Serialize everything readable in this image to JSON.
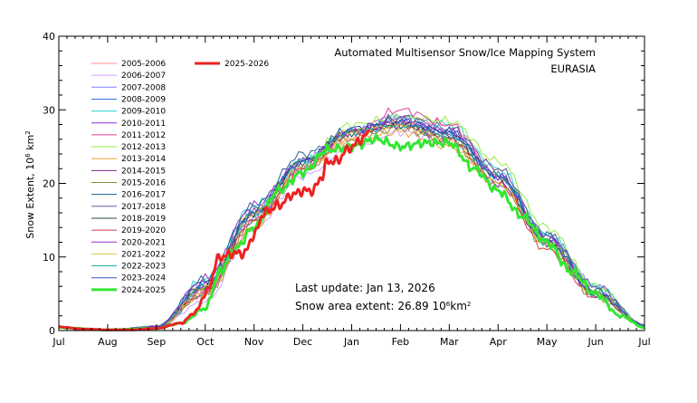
{
  "chart_data": {
    "type": "line",
    "title": "Automated  Multisensor Snow/Ice Mapping System",
    "subtitle": "EURASIA",
    "ylabel": "Snow Extent, 10",
    "ylabel_exp": "6",
    "ylabel_unit": " km",
    "ylabel_unit_exp": "2",
    "ylim": [
      0,
      40
    ],
    "y_ticks": [
      "0",
      "10",
      "20",
      "30",
      "40"
    ],
    "x_ticks": [
      "Jul",
      "Aug",
      "Sep",
      "Oct",
      "Nov",
      "Dec",
      "Jan",
      "Feb",
      "Mar",
      "Apr",
      "May",
      "Jun",
      "Jul"
    ],
    "x_tick_months": [
      0,
      1,
      2,
      3,
      4,
      5,
      6,
      7,
      8,
      9,
      10,
      11,
      12
    ],
    "annotation_update": "Last update: Jan 13, 2026",
    "annotation_extent_label": "Snow area extent:",
    "annotation_extent_value": "26.89",
    "annotation_extent_unit": "10",
    "annotation_extent_exp": "6",
    "annotation_extent_unit2": "km",
    "annotation_extent_exp2": "2",
    "legend_placement": "top-left",
    "series": [
      {
        "name": "2005-2006",
        "color": "#ff8c8c",
        "values": [
          [
            0,
            0.5
          ],
          [
            1,
            0.1
          ],
          [
            2,
            0.5
          ],
          [
            3,
            5
          ],
          [
            4,
            15
          ],
          [
            5,
            22
          ],
          [
            6,
            26
          ],
          [
            7,
            29
          ],
          [
            8,
            28
          ],
          [
            9,
            22
          ],
          [
            10,
            13
          ],
          [
            11,
            6
          ],
          [
            12,
            0.8
          ]
        ]
      },
      {
        "name": "2006-2007",
        "color": "#c9a3ff",
        "values": [
          [
            0,
            0.4
          ],
          [
            1,
            0.1
          ],
          [
            2,
            0.4
          ],
          [
            3,
            4
          ],
          [
            4,
            14
          ],
          [
            5,
            21
          ],
          [
            6,
            25
          ],
          [
            7,
            27
          ],
          [
            8,
            25.5
          ],
          [
            9,
            20
          ],
          [
            10,
            12
          ],
          [
            11,
            5
          ],
          [
            12,
            0.6
          ]
        ]
      },
      {
        "name": "2007-2008",
        "color": "#7d7dff",
        "values": [
          [
            0,
            0.4
          ],
          [
            1,
            0.1
          ],
          [
            2,
            0.5
          ],
          [
            3,
            6
          ],
          [
            4,
            16
          ],
          [
            5,
            23
          ],
          [
            6,
            27
          ],
          [
            7,
            29
          ],
          [
            8,
            27
          ],
          [
            9,
            21
          ],
          [
            10,
            13
          ],
          [
            11,
            6
          ],
          [
            12,
            0.7
          ]
        ]
      },
      {
        "name": "2008-2009",
        "color": "#3b6fe0",
        "values": [
          [
            0,
            0.4
          ],
          [
            1,
            0.1
          ],
          [
            2,
            0.4
          ],
          [
            3,
            5
          ],
          [
            4,
            15
          ],
          [
            5,
            22
          ],
          [
            6,
            27
          ],
          [
            7,
            28
          ],
          [
            8,
            26.5
          ],
          [
            9,
            21
          ],
          [
            10,
            12.5
          ],
          [
            11,
            5
          ],
          [
            12,
            0.6
          ]
        ]
      },
      {
        "name": "2009-2010",
        "color": "#2fd0d0",
        "values": [
          [
            0,
            0.4
          ],
          [
            1,
            0.1
          ],
          [
            2,
            0.6
          ],
          [
            3,
            7
          ],
          [
            4,
            17
          ],
          [
            5,
            23
          ],
          [
            6,
            27
          ],
          [
            7,
            29
          ],
          [
            8,
            28
          ],
          [
            9,
            22
          ],
          [
            10,
            13
          ],
          [
            11,
            6
          ],
          [
            12,
            0.8
          ]
        ]
      },
      {
        "name": "2010-2011",
        "color": "#8a2be2",
        "values": [
          [
            0,
            0.4
          ],
          [
            1,
            0.1
          ],
          [
            2,
            0.5
          ],
          [
            3,
            6
          ],
          [
            4,
            16
          ],
          [
            5,
            23
          ],
          [
            6,
            27
          ],
          [
            7,
            28.5
          ],
          [
            8,
            27
          ],
          [
            9,
            21
          ],
          [
            10,
            12
          ],
          [
            11,
            5
          ],
          [
            12,
            0.7
          ]
        ]
      },
      {
        "name": "2011-2012",
        "color": "#e0409a",
        "values": [
          [
            0,
            0.4
          ],
          [
            1,
            0.1
          ],
          [
            2,
            0.5
          ],
          [
            3,
            5
          ],
          [
            4,
            15
          ],
          [
            5,
            22
          ],
          [
            6,
            27
          ],
          [
            7,
            30
          ],
          [
            8,
            28
          ],
          [
            9,
            21
          ],
          [
            10,
            12
          ],
          [
            11,
            5
          ],
          [
            12,
            0.6
          ]
        ]
      },
      {
        "name": "2012-2013",
        "color": "#90ee40",
        "values": [
          [
            0,
            0.4
          ],
          [
            1,
            0.1
          ],
          [
            2,
            0.5
          ],
          [
            3,
            6
          ],
          [
            4,
            16
          ],
          [
            5,
            23
          ],
          [
            6,
            28
          ],
          [
            7,
            29
          ],
          [
            8,
            28.5
          ],
          [
            9,
            23
          ],
          [
            10,
            14
          ],
          [
            11,
            6
          ],
          [
            12,
            0.8
          ]
        ]
      },
      {
        "name": "2013-2014",
        "color": "#f0a030",
        "values": [
          [
            0,
            0.4
          ],
          [
            1,
            0.1
          ],
          [
            2,
            0.4
          ],
          [
            3,
            5
          ],
          [
            4,
            14
          ],
          [
            5,
            22
          ],
          [
            6,
            26
          ],
          [
            7,
            27
          ],
          [
            8,
            25
          ],
          [
            9,
            20
          ],
          [
            10,
            12
          ],
          [
            11,
            5
          ],
          [
            12,
            0.6
          ]
        ]
      },
      {
        "name": "2014-2015",
        "color": "#7a2a8a",
        "values": [
          [
            0,
            0.4
          ],
          [
            1,
            0.1
          ],
          [
            2,
            0.5
          ],
          [
            3,
            6
          ],
          [
            4,
            16
          ],
          [
            5,
            23
          ],
          [
            6,
            27
          ],
          [
            7,
            28
          ],
          [
            8,
            26
          ],
          [
            9,
            20
          ],
          [
            10,
            12
          ],
          [
            11,
            5
          ],
          [
            12,
            0.6
          ]
        ]
      },
      {
        "name": "2015-2016",
        "color": "#8b8b3a",
        "values": [
          [
            0,
            0.4
          ],
          [
            1,
            0.1
          ],
          [
            2,
            0.4
          ],
          [
            3,
            5
          ],
          [
            4,
            15
          ],
          [
            5,
            22
          ],
          [
            6,
            26
          ],
          [
            7,
            27.5
          ],
          [
            8,
            25.5
          ],
          [
            9,
            20
          ],
          [
            10,
            11.5
          ],
          [
            11,
            4.5
          ],
          [
            12,
            0.6
          ]
        ]
      },
      {
        "name": "2016-2017",
        "color": "#1f5f8f",
        "values": [
          [
            0,
            0.4
          ],
          [
            1,
            0.1
          ],
          [
            2,
            0.6
          ],
          [
            3,
            7
          ],
          [
            4,
            17
          ],
          [
            5,
            24
          ],
          [
            6,
            27
          ],
          [
            7,
            28
          ],
          [
            8,
            27
          ],
          [
            9,
            21
          ],
          [
            10,
            13
          ],
          [
            11,
            5.5
          ],
          [
            12,
            0.7
          ]
        ]
      },
      {
        "name": "2017-2018",
        "color": "#6060a0",
        "values": [
          [
            0,
            0.4
          ],
          [
            1,
            0.1
          ],
          [
            2,
            0.5
          ],
          [
            3,
            6
          ],
          [
            4,
            16
          ],
          [
            5,
            23
          ],
          [
            6,
            27
          ],
          [
            7,
            29
          ],
          [
            8,
            27.5
          ],
          [
            9,
            22
          ],
          [
            10,
            13
          ],
          [
            11,
            6
          ],
          [
            12,
            0.8
          ]
        ]
      },
      {
        "name": "2018-2019",
        "color": "#1f4f2f",
        "values": [
          [
            0,
            0.4
          ],
          [
            1,
            0.1
          ],
          [
            2,
            0.5
          ],
          [
            3,
            6
          ],
          [
            4,
            16
          ],
          [
            5,
            23
          ],
          [
            6,
            27
          ],
          [
            7,
            28
          ],
          [
            8,
            26.5
          ],
          [
            9,
            21
          ],
          [
            10,
            12
          ],
          [
            11,
            5
          ],
          [
            12,
            0.7
          ]
        ]
      },
      {
        "name": "2019-2020",
        "color": "#d04040",
        "values": [
          [
            0,
            0.4
          ],
          [
            1,
            0.1
          ],
          [
            2,
            0.5
          ],
          [
            3,
            5.5
          ],
          [
            4,
            15
          ],
          [
            5,
            22
          ],
          [
            6,
            27
          ],
          [
            7,
            28
          ],
          [
            8,
            26
          ],
          [
            9,
            20
          ],
          [
            10,
            11
          ],
          [
            11,
            4.5
          ],
          [
            12,
            0.6
          ]
        ]
      },
      {
        "name": "2020-2021",
        "color": "#a030c0",
        "values": [
          [
            0,
            0.4
          ],
          [
            1,
            0.1
          ],
          [
            2,
            0.6
          ],
          [
            3,
            7
          ],
          [
            4,
            17
          ],
          [
            5,
            23
          ],
          [
            6,
            27
          ],
          [
            7,
            28.5
          ],
          [
            8,
            27
          ],
          [
            9,
            21
          ],
          [
            10,
            12.5
          ],
          [
            11,
            5
          ],
          [
            12,
            0.7
          ]
        ]
      },
      {
        "name": "2021-2022",
        "color": "#e0c040",
        "values": [
          [
            0,
            0.4
          ],
          [
            1,
            0.1
          ],
          [
            2,
            0.5
          ],
          [
            3,
            6
          ],
          [
            4,
            16
          ],
          [
            5,
            22.5
          ],
          [
            6,
            27
          ],
          [
            7,
            28
          ],
          [
            8,
            26
          ],
          [
            9,
            20
          ],
          [
            10,
            12
          ],
          [
            11,
            5
          ],
          [
            12,
            0.7
          ]
        ]
      },
      {
        "name": "2022-2023",
        "color": "#20b0b0",
        "values": [
          [
            0,
            0.4
          ],
          [
            1,
            0.1
          ],
          [
            2,
            0.5
          ],
          [
            3,
            6
          ],
          [
            4,
            16
          ],
          [
            5,
            23
          ],
          [
            6,
            27
          ],
          [
            7,
            28
          ],
          [
            8,
            26.5
          ],
          [
            9,
            21
          ],
          [
            10,
            12
          ],
          [
            11,
            5
          ],
          [
            12,
            0.6
          ]
        ]
      },
      {
        "name": "2023-2024",
        "color": "#3050c0",
        "values": [
          [
            0,
            0.4
          ],
          [
            1,
            0.1
          ],
          [
            2,
            0.5
          ],
          [
            3,
            6.5
          ],
          [
            4,
            16
          ],
          [
            5,
            23
          ],
          [
            6,
            27.5
          ],
          [
            7,
            28.5
          ],
          [
            8,
            27
          ],
          [
            9,
            21
          ],
          [
            10,
            12.5
          ],
          [
            11,
            5
          ],
          [
            12,
            0.7
          ]
        ]
      },
      {
        "name": "2024-2025",
        "color": "#33e633",
        "width": 3,
        "values": [
          [
            0,
            0.4
          ],
          [
            1,
            0.1
          ],
          [
            2,
            0.3
          ],
          [
            2.5,
            1
          ],
          [
            3,
            3
          ],
          [
            3.3,
            8
          ],
          [
            3.6,
            11
          ],
          [
            4,
            14
          ],
          [
            4.5,
            19
          ],
          [
            5,
            21.5
          ],
          [
            5.5,
            24.5
          ],
          [
            6,
            25
          ],
          [
            6.5,
            26
          ],
          [
            7,
            25
          ],
          [
            7.5,
            25.5
          ],
          [
            8,
            25.5
          ],
          [
            8.5,
            22
          ],
          [
            9,
            19
          ],
          [
            9.5,
            15.5
          ],
          [
            10,
            12
          ],
          [
            10.5,
            8
          ],
          [
            11,
            5
          ],
          [
            11.5,
            2
          ],
          [
            12,
            0.4
          ]
        ]
      },
      {
        "name": "2025-2026",
        "color": "#ee2222",
        "width": 3,
        "values": [
          [
            0,
            0.5
          ],
          [
            0.5,
            0.2
          ],
          [
            1,
            0.1
          ],
          [
            1.5,
            0.1
          ],
          [
            2,
            0.3
          ],
          [
            2.5,
            1
          ],
          [
            2.8,
            2.5
          ],
          [
            3,
            5
          ],
          [
            3.3,
            10
          ],
          [
            3.6,
            10.5
          ],
          [
            3.8,
            10.5
          ],
          [
            4,
            13
          ],
          [
            4.2,
            16
          ],
          [
            4.5,
            17
          ],
          [
            4.8,
            18.5
          ],
          [
            5,
            19
          ],
          [
            5.2,
            19
          ],
          [
            5.4,
            21
          ],
          [
            5.5,
            23
          ],
          [
            5.7,
            23
          ],
          [
            5.9,
            24.5
          ],
          [
            6,
            25
          ],
          [
            6.2,
            26
          ],
          [
            6.35,
            26.89
          ]
        ]
      }
    ]
  }
}
